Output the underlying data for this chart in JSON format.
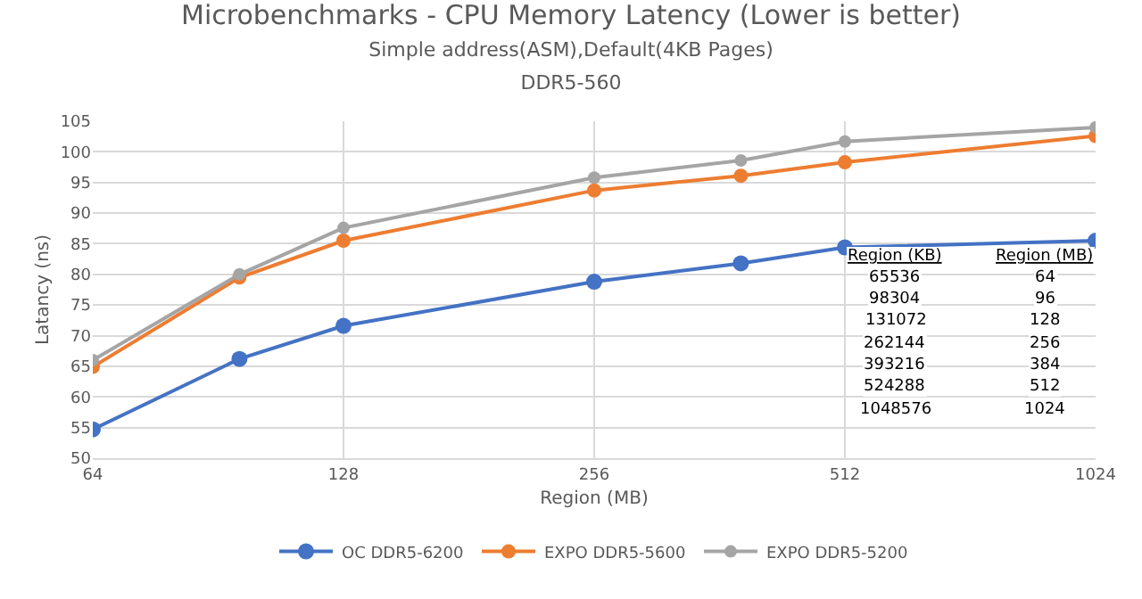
{
  "chart_data": {
    "type": "line",
    "title": "Microbenchmarks - CPU Memory Latency (Lower is better)",
    "subtitle": "Simple address(ASM),Default(4KB Pages)\nDDR5-560",
    "xlabel": "Region (MB)",
    "ylabel": "Latancy (ns)",
    "x": [
      64,
      96,
      128,
      256,
      384,
      512,
      1024
    ],
    "series": [
      {
        "name": "OC DDR5-6200",
        "color": "#4472c4",
        "values": [
          54.7,
          66.2,
          71.6,
          78.8,
          81.8,
          84.4,
          85.5
        ]
      },
      {
        "name": "EXPO DDR5-5600",
        "color": "#ed7d31",
        "values": [
          64.9,
          79.5,
          85.5,
          93.7,
          96.1,
          98.3,
          102.6
        ]
      },
      {
        "name": "EXPO DDR5-5200",
        "color": "#a5a5a5",
        "values": [
          66,
          80,
          87.6,
          95.8,
          98.6,
          101.7,
          104
        ]
      }
    ],
    "log": "x",
    "xlim": [
      64,
      1024
    ],
    "xticks": [
      64,
      128,
      256,
      512,
      1024
    ],
    "ylim": [
      50,
      105
    ],
    "yticks": [
      50,
      55,
      60,
      65,
      70,
      75,
      80,
      85,
      90,
      95,
      100,
      105
    ],
    "grid": true,
    "legend": "bottom",
    "marker": "circle",
    "line_style": "solid",
    "annotations": [
      "Region (KB)",
      "Region (MB)",
      "65536",
      "64",
      "98304",
      "96",
      "131072",
      "128",
      "262144",
      "256",
      "393216",
      "384",
      "524288",
      "512",
      "1048576",
      "1024"
    ]
  }
}
